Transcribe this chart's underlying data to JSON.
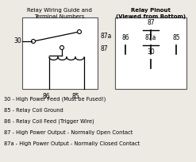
{
  "title_left": "Relay Wiring Guide and\nTerminal Numbers",
  "title_right": "Relay Pinout\n(Viewed from Bottom)",
  "legend_lines": [
    "30 - High Power Feed (Must be Fused!)",
    "85 - Relay Coil Ground",
    "86 - Relay Coil Feed (Trigger Wire)",
    "87 - High Power Output - Normally Open Contact",
    "87a - High Power Output - Normally Closed Contact"
  ],
  "bg_color": "#ede9e3"
}
